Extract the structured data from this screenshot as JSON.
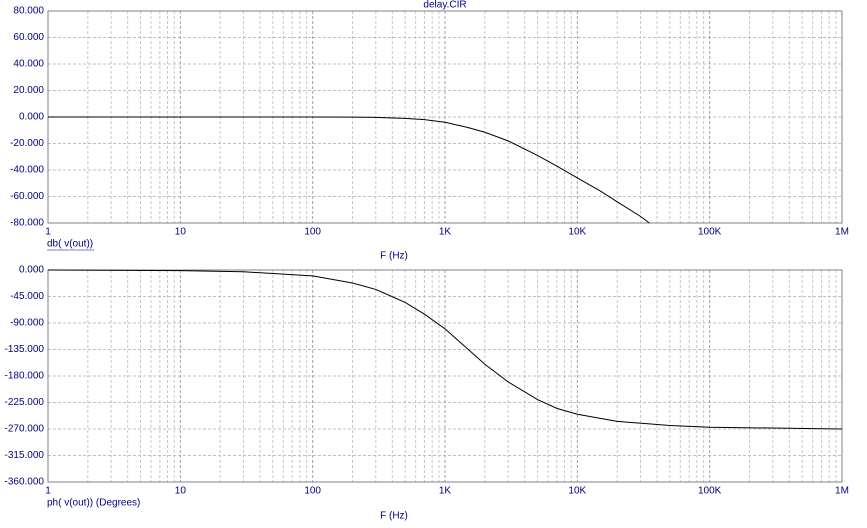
{
  "chart_data": [
    {
      "type": "line",
      "title": "delay.CIR",
      "ylabel": "db( v(out))",
      "xlabel": "F (Hz)",
      "log_x": true,
      "grid": true,
      "x": [
        1,
        10,
        100,
        200,
        300,
        500,
        700,
        1000,
        1500,
        2000,
        3000,
        5000,
        7000,
        10000,
        15000,
        20000,
        30000,
        35000
      ],
      "series": [
        {
          "color": "#000000",
          "values": [
            0,
            0,
            0,
            -0.1,
            -0.3,
            -1,
            -2,
            -4,
            -8,
            -11.5,
            -18,
            -29,
            -37,
            -46,
            -56,
            -64,
            -75,
            -80
          ]
        }
      ],
      "xlim": [
        1,
        1000000
      ],
      "xticks": [
        1,
        10,
        100,
        {
          "value": 1000,
          "label": "1K"
        },
        {
          "value": 10000,
          "label": "10K"
        },
        {
          "value": 100000,
          "label": "100K"
        },
        {
          "value": 1000000,
          "label": "1M"
        }
      ],
      "ylim": [
        -80,
        80
      ],
      "yticks": [
        {
          "value": 80,
          "label": "80.000"
        },
        {
          "value": 60,
          "label": "60.000"
        },
        {
          "value": 40,
          "label": "40.000"
        },
        {
          "value": 20,
          "label": "20.000"
        },
        {
          "value": 0,
          "label": "0.000"
        },
        {
          "value": -20,
          "label": "-20.000"
        },
        {
          "value": -40,
          "label": "-40.000"
        },
        {
          "value": -60,
          "label": "-60.000"
        },
        {
          "value": -80,
          "label": "-80.000"
        }
      ]
    },
    {
      "type": "line",
      "ylabel": "ph( v(out)) (Degrees)",
      "xlabel": "F (Hz)",
      "log_x": true,
      "grid": true,
      "x": [
        1,
        10,
        30,
        100,
        200,
        300,
        500,
        700,
        1000,
        1500,
        2000,
        3000,
        5000,
        7000,
        10000,
        20000,
        50000,
        100000,
        1000000
      ],
      "series": [
        {
          "color": "#000000",
          "values": [
            0,
            -1,
            -3,
            -10,
            -22,
            -33,
            -55,
            -75,
            -100,
            -135,
            -160,
            -190,
            -220,
            -235,
            -245,
            -257,
            -264,
            -267,
            -270
          ]
        }
      ],
      "xlim": [
        1,
        1000000
      ],
      "xticks": [
        1,
        10,
        100,
        {
          "value": 1000,
          "label": "1K"
        },
        {
          "value": 10000,
          "label": "10K"
        },
        {
          "value": 100000,
          "label": "100K"
        },
        {
          "value": 1000000,
          "label": "1M"
        }
      ],
      "ylim": [
        -360,
        0
      ],
      "yticks": [
        {
          "value": 0,
          "label": "0.000"
        },
        {
          "value": -45,
          "label": "-45.000"
        },
        {
          "value": -90,
          "label": "-90.000"
        },
        {
          "value": -135,
          "label": "-135.000"
        },
        {
          "value": -180,
          "label": "-180.000"
        },
        {
          "value": -225,
          "label": "-225.000"
        },
        {
          "value": -270,
          "label": "-270.000"
        },
        {
          "value": -315,
          "label": "-315.000"
        },
        {
          "value": -360,
          "label": "-360.000"
        }
      ]
    }
  ]
}
